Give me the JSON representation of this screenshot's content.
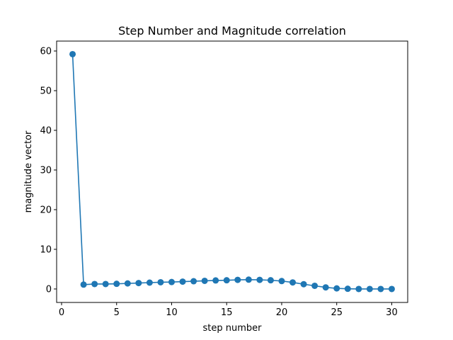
{
  "chart_data": {
    "type": "line",
    "title": "Step Number and Magnitude correlation",
    "xlabel": "step number",
    "ylabel": "magnitude vector",
    "xlim": [
      -0.45,
      31.45
    ],
    "ylim": [
      -3.4,
      62.5
    ],
    "xticks": [
      0,
      5,
      10,
      15,
      20,
      25,
      30
    ],
    "yticks": [
      0,
      10,
      20,
      30,
      40,
      50,
      60
    ],
    "grid": false,
    "series": [
      {
        "color": "#1f77b4",
        "marker": "circle",
        "x": [
          1,
          2,
          3,
          4,
          5,
          6,
          7,
          8,
          9,
          10,
          11,
          12,
          13,
          14,
          15,
          16,
          17,
          18,
          19,
          20,
          21,
          22,
          23,
          24,
          25,
          26,
          27,
          28,
          29,
          30
        ],
        "y": [
          59.2,
          1.1,
          1.25,
          1.25,
          1.3,
          1.4,
          1.5,
          1.6,
          1.7,
          1.75,
          1.85,
          1.95,
          2.05,
          2.15,
          2.2,
          2.3,
          2.35,
          2.3,
          2.2,
          2.0,
          1.65,
          1.2,
          0.8,
          0.4,
          0.15,
          0.05,
          0.0,
          0.0,
          0.0,
          0.0
        ]
      }
    ]
  }
}
